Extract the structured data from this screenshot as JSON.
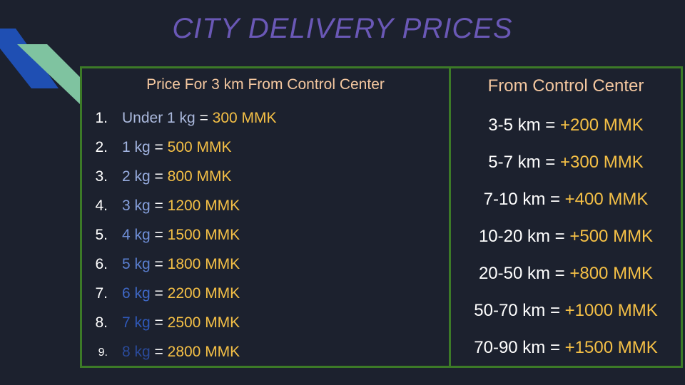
{
  "colors": {
    "background": "#1c212e",
    "title": "#6a58b6",
    "border": "#3c7a27",
    "heading": "#f5c8a0",
    "price": "#f5c046"
  },
  "title": "CITY DELIVERY PRICES",
  "left_panel": {
    "heading": "Price For 3 km From Control Center",
    "items": [
      {
        "number": "1.",
        "weight": "Under 1 kg",
        "equals": " = ",
        "price": "300 MMK",
        "weight_color": "#aab8dc"
      },
      {
        "number": "2.",
        "weight": "1 kg",
        "equals": " = ",
        "price": "500 MMK",
        "weight_color": "#a2b4e0"
      },
      {
        "number": "3.",
        "weight": "2 kg",
        "equals": " = ",
        "price": "800 MMK",
        "weight_color": "#97acdf"
      },
      {
        "number": "4.",
        "weight": "3 kg",
        "equals": " = ",
        "price": "1200 MMK",
        "weight_color": "#86a0dd"
      },
      {
        "number": "5.",
        "weight": "4 kg",
        "equals": " = ",
        "price": "1500 MMK",
        "weight_color": "#6f8fd8"
      },
      {
        "number": "6.",
        "weight": "5 kg",
        "equals": " = ",
        "price": "1800 MMK",
        "weight_color": "#5a7fd0"
      },
      {
        "number": "7.",
        "weight": "6 kg",
        "equals": " = ",
        "price": "2200 MMK",
        "weight_color": "#3f68c6"
      },
      {
        "number": "8.",
        "weight": "7 kg",
        "equals": " = ",
        "price": "2500 MMK",
        "weight_color": "#2f58b8"
      },
      {
        "number": "9.",
        "weight": "8 kg",
        "equals": " = ",
        "price": "2800 MMK",
        "weight_color": "#2a4a9a"
      }
    ]
  },
  "right_panel": {
    "heading": "From Control Center",
    "items": [
      {
        "range": "3-5 km = ",
        "price": "+200 MMK"
      },
      {
        "range": "5-7 km = ",
        "price": "+300 MMK"
      },
      {
        "range": "7-10 km = ",
        "price": "+400 MMK"
      },
      {
        "range": "10-20 km = ",
        "price": "+500 MMK"
      },
      {
        "range": "20-50 km = ",
        "price": "+800 MMK"
      },
      {
        "range": "50-70 km = ",
        "price": "+1000 MMK"
      },
      {
        "range": "70-90 km = ",
        "price": "+1500 MMK"
      }
    ]
  }
}
